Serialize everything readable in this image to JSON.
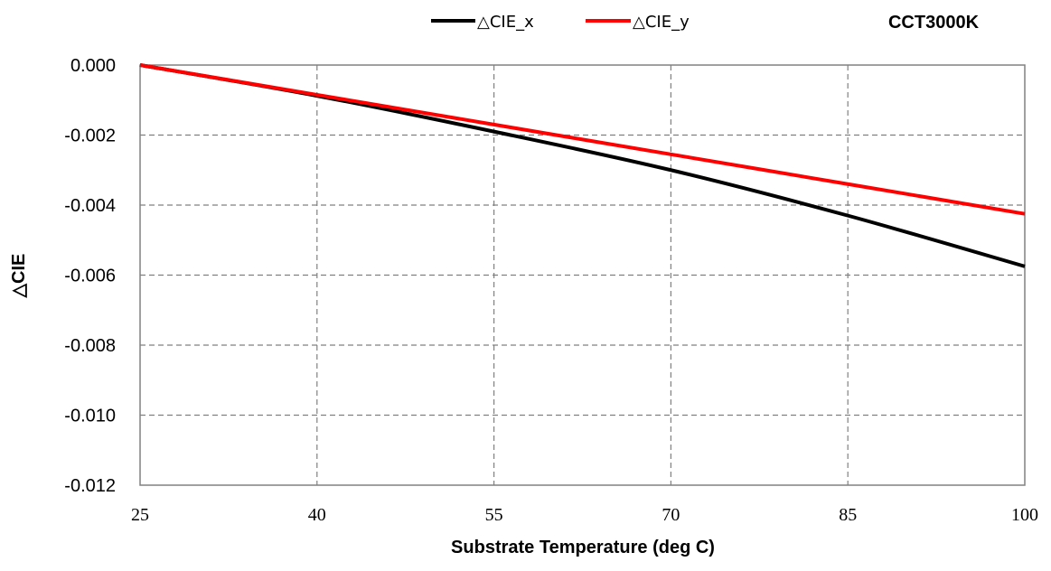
{
  "chart_data": {
    "type": "line",
    "title": "CCT3000K",
    "xlabel": "Substrate Temperature (deg C)",
    "ylabel": "△CIE",
    "xlim": [
      25,
      100
    ],
    "ylim": [
      -0.012,
      0.0
    ],
    "x_ticks": [
      "25",
      "40",
      "55",
      "70",
      "85",
      "100"
    ],
    "y_ticks": [
      "0.000",
      "-0.002",
      "-0.004",
      "-0.006",
      "-0.008",
      "-0.010",
      "-0.012"
    ],
    "grid": true,
    "legend_position": "top",
    "x": [
      25,
      40,
      55,
      70,
      85,
      100
    ],
    "series": [
      {
        "name": "△CIE_x",
        "color": "#000000",
        "values": [
          0.0,
          -0.00088,
          -0.0019,
          -0.003,
          -0.0043,
          -0.00575
        ]
      },
      {
        "name": "△CIE_y",
        "color": "#ff0000",
        "values": [
          0.0,
          -0.00085,
          -0.0017,
          -0.00255,
          -0.0034,
          -0.00425
        ]
      }
    ]
  }
}
